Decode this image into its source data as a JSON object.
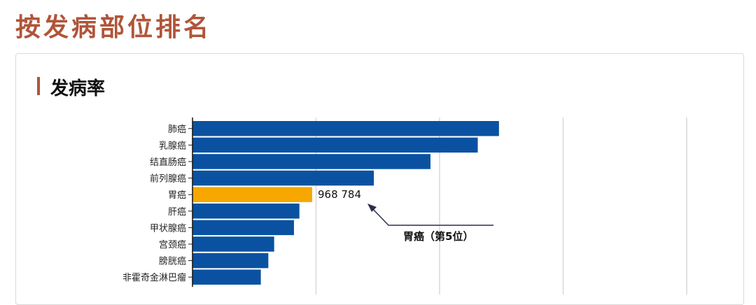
{
  "page": {
    "title": "按发病部位排名"
  },
  "section": {
    "title": "发病率"
  },
  "chart_data": {
    "type": "bar",
    "orientation": "horizontal",
    "categories": [
      "肺癌",
      "乳腺癌",
      "结直肠癌",
      "前列腺癌",
      "胃癌",
      "肝癌",
      "甲状腺癌",
      "宫颈癌",
      "膀胱癌",
      "非霍奇金淋巴瘤"
    ],
    "values": [
      2480675,
      2308897,
      1926118,
      1467854,
      968784,
      865269,
      821214,
      661021,
      613791,
      553010
    ],
    "xlim": [
      0,
      4000000
    ],
    "grid": true,
    "highlight_index": 4,
    "highlight_value_label": "968 784",
    "annotation": "胃癌（第5位）",
    "colors": {
      "bar": "#0a52a1",
      "highlight": "#f8a700",
      "grid": "#d9d9d9",
      "annotation": "#2a2f4f"
    }
  }
}
